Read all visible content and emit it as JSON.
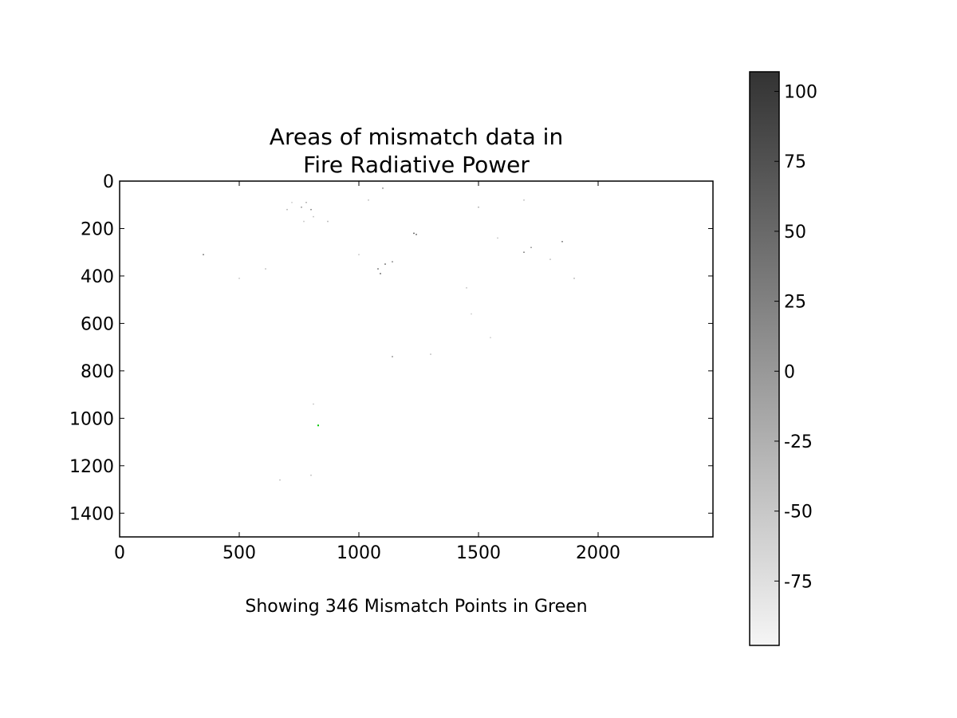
{
  "chart_data": {
    "type": "heatmap",
    "title_lines": [
      "Areas of mismatch data in",
      "Fire Radiative Power"
    ],
    "caption": "Showing 346 Mismatch Points in Green",
    "xlim": [
      0,
      2480
    ],
    "ylim": [
      1500,
      0
    ],
    "x_ticks": [
      0,
      500,
      1000,
      1500,
      2000
    ],
    "x_tick_labels": [
      "0",
      "500",
      "1000",
      "1500",
      "2000"
    ],
    "y_ticks": [
      0,
      200,
      400,
      600,
      800,
      1000,
      1200,
      1400
    ],
    "y_tick_labels": [
      "0",
      "200",
      "400",
      "600",
      "800",
      "1000",
      "1200",
      "1400"
    ],
    "colormap": "gray_r",
    "colorbar": {
      "min": -98,
      "max": 107,
      "ticks": [
        100,
        75,
        50,
        25,
        0,
        -25,
        -50,
        -75
      ],
      "tick_labels": [
        "100",
        "75",
        "50",
        "25",
        "0",
        "-25",
        "-50",
        "-75"
      ],
      "color_low": "#f5f5f5",
      "color_high": "#333333"
    },
    "mismatch_color": "#00c800",
    "points": [
      {
        "x": 350,
        "y": 310,
        "v": 60
      },
      {
        "x": 500,
        "y": 410,
        "v": -40
      },
      {
        "x": 610,
        "y": 370,
        "v": -30
      },
      {
        "x": 700,
        "y": 120,
        "v": -20
      },
      {
        "x": 720,
        "y": 90,
        "v": -50
      },
      {
        "x": 760,
        "y": 110,
        "v": 20
      },
      {
        "x": 780,
        "y": 90,
        "v": -10
      },
      {
        "x": 800,
        "y": 120,
        "v": 40
      },
      {
        "x": 810,
        "y": 150,
        "v": -30
      },
      {
        "x": 770,
        "y": 170,
        "v": -40
      },
      {
        "x": 870,
        "y": 170,
        "v": -20
      },
      {
        "x": 1040,
        "y": 80,
        "v": -30
      },
      {
        "x": 1100,
        "y": 30,
        "v": 30
      },
      {
        "x": 1000,
        "y": 310,
        "v": -40
      },
      {
        "x": 1080,
        "y": 370,
        "v": 60
      },
      {
        "x": 1090,
        "y": 390,
        "v": 80
      },
      {
        "x": 1110,
        "y": 350,
        "v": 70
      },
      {
        "x": 1140,
        "y": 340,
        "v": 40
      },
      {
        "x": 1230,
        "y": 220,
        "v": 90
      },
      {
        "x": 1240,
        "y": 225,
        "v": 80
      },
      {
        "x": 1500,
        "y": 110,
        "v": -10
      },
      {
        "x": 1580,
        "y": 240,
        "v": -40
      },
      {
        "x": 1690,
        "y": 300,
        "v": 50
      },
      {
        "x": 1720,
        "y": 280,
        "v": 20
      },
      {
        "x": 1690,
        "y": 80,
        "v": -30
      },
      {
        "x": 1800,
        "y": 330,
        "v": -30
      },
      {
        "x": 1850,
        "y": 255,
        "v": 60
      },
      {
        "x": 1900,
        "y": 410,
        "v": -20
      },
      {
        "x": 1450,
        "y": 450,
        "v": -40
      },
      {
        "x": 1470,
        "y": 560,
        "v": -50
      },
      {
        "x": 1550,
        "y": 660,
        "v": -50
      },
      {
        "x": 1140,
        "y": 740,
        "v": 30
      },
      {
        "x": 1300,
        "y": 730,
        "v": -30
      },
      {
        "x": 810,
        "y": 940,
        "v": -40
      },
      {
        "x": 800,
        "y": 1240,
        "v": -30
      },
      {
        "x": 670,
        "y": 1260,
        "v": -30
      }
    ],
    "mismatch_points": [
      {
        "x": 830,
        "y": 1030
      }
    ]
  }
}
